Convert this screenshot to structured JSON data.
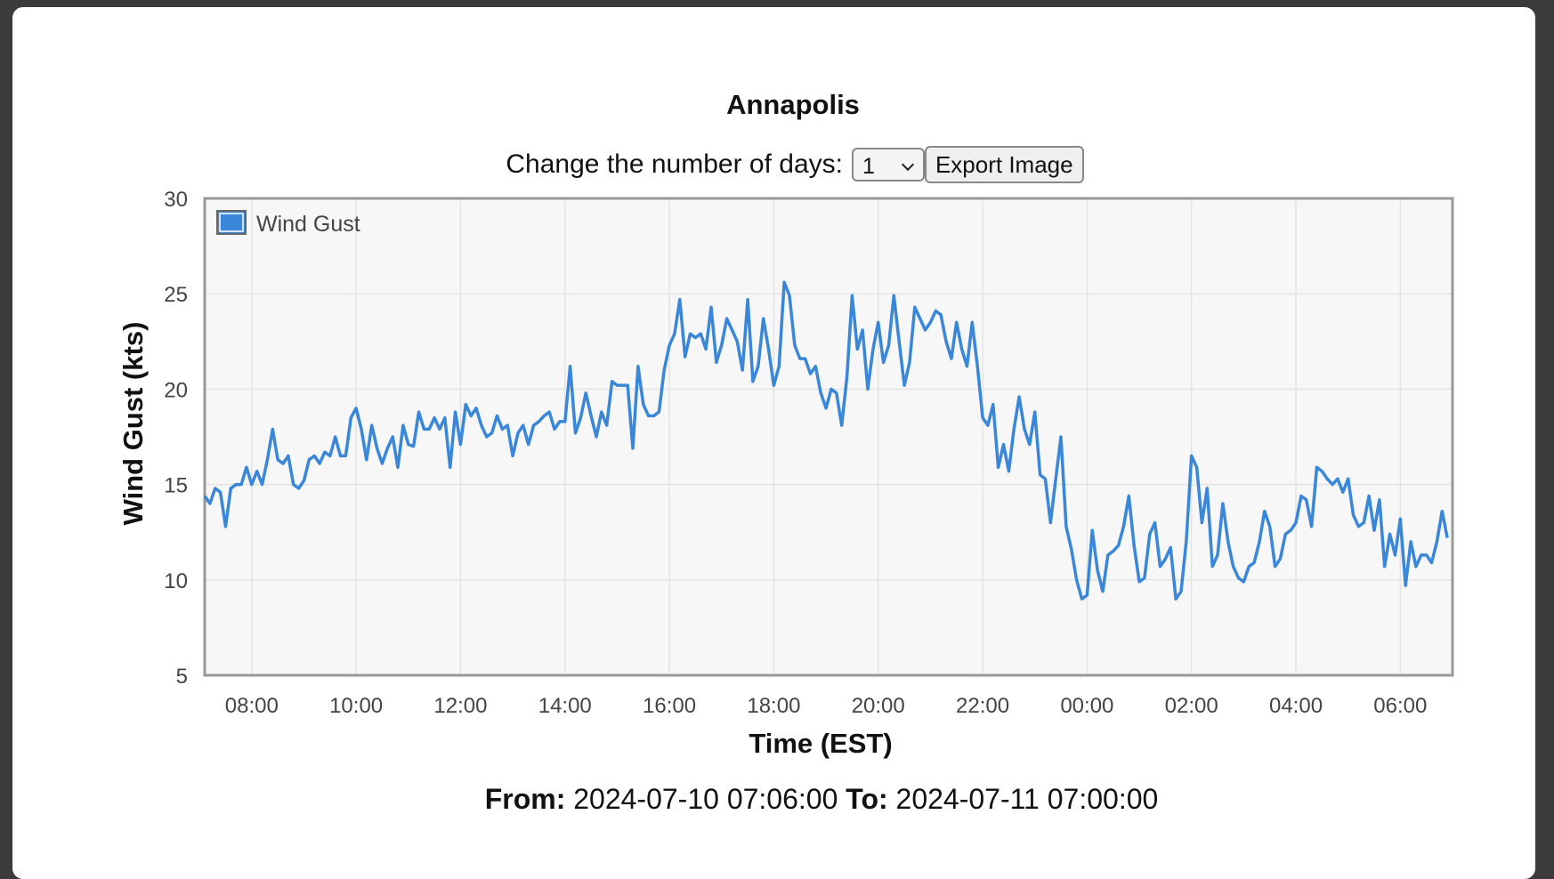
{
  "chart_data": {
    "type": "line",
    "title": "Annapolis",
    "xlabel": "Time (EST)",
    "ylabel": "Wind Gust (kts)",
    "x": [
      "07:06",
      "07:12",
      "07:18",
      "07:24",
      "07:30",
      "07:36",
      "07:42",
      "07:48",
      "07:54",
      "08:00",
      "08:06",
      "08:12",
      "08:18",
      "08:24",
      "08:30",
      "08:36",
      "08:42",
      "08:48",
      "08:54",
      "09:00",
      "09:06",
      "09:12",
      "09:18",
      "09:24",
      "09:30",
      "09:36",
      "09:42",
      "09:48",
      "09:54",
      "10:00",
      "10:06",
      "10:12",
      "10:18",
      "10:24",
      "10:30",
      "10:36",
      "10:42",
      "10:48",
      "10:54",
      "11:00",
      "11:06",
      "11:12",
      "11:18",
      "11:24",
      "11:30",
      "11:36",
      "11:42",
      "11:48",
      "11:54",
      "12:00",
      "12:06",
      "12:12",
      "12:18",
      "12:24",
      "12:30",
      "12:36",
      "12:42",
      "12:48",
      "12:54",
      "13:00",
      "13:06",
      "13:12",
      "13:18",
      "13:24",
      "13:30",
      "13:36",
      "13:42",
      "13:48",
      "13:54",
      "14:00",
      "14:06",
      "14:12",
      "14:18",
      "14:24",
      "14:30",
      "14:36",
      "14:42",
      "14:48",
      "14:54",
      "15:00",
      "15:06",
      "15:12",
      "15:18",
      "15:24",
      "15:30",
      "15:36",
      "15:42",
      "15:48",
      "15:54",
      "16:00",
      "16:06",
      "16:12",
      "16:18",
      "16:24",
      "16:30",
      "16:36",
      "16:42",
      "16:48",
      "16:54",
      "17:00",
      "17:06",
      "17:12",
      "17:18",
      "17:24",
      "17:30",
      "17:36",
      "17:42",
      "17:48",
      "17:54",
      "18:00",
      "18:06",
      "18:12",
      "18:18",
      "18:24",
      "18:30",
      "18:36",
      "18:42",
      "18:48",
      "18:54",
      "19:00",
      "19:06",
      "19:12",
      "19:18",
      "19:24",
      "19:30",
      "19:36",
      "19:42",
      "19:48",
      "19:54",
      "20:00",
      "20:06",
      "20:12",
      "20:18",
      "20:24",
      "20:30",
      "20:36",
      "20:42",
      "20:48",
      "20:54",
      "21:00",
      "21:06",
      "21:12",
      "21:18",
      "21:24",
      "21:30",
      "21:36",
      "21:42",
      "21:48",
      "21:54",
      "22:00",
      "22:06",
      "22:12",
      "22:18",
      "22:24",
      "22:30",
      "22:36",
      "22:42",
      "22:48",
      "22:54",
      "23:00",
      "23:06",
      "23:12",
      "23:18",
      "23:24",
      "23:30",
      "23:36",
      "23:42",
      "23:48",
      "23:54",
      "00:00",
      "00:06",
      "00:12",
      "00:18",
      "00:24",
      "00:30",
      "00:36",
      "00:42",
      "00:48",
      "00:54",
      "01:00",
      "01:06",
      "01:12",
      "01:18",
      "01:24",
      "01:30",
      "01:36",
      "01:42",
      "01:48",
      "01:54",
      "02:00",
      "02:06",
      "02:12",
      "02:18",
      "02:24",
      "02:30",
      "02:36",
      "02:42",
      "02:48",
      "02:54",
      "03:00",
      "03:06",
      "03:12",
      "03:18",
      "03:24",
      "03:30",
      "03:36",
      "03:42",
      "03:48",
      "03:54",
      "04:00",
      "04:06",
      "04:12",
      "04:18",
      "04:24",
      "04:30",
      "04:36",
      "04:42",
      "04:48",
      "04:54",
      "05:00",
      "05:06",
      "05:12",
      "05:18",
      "05:24",
      "05:30",
      "05:36",
      "05:42",
      "05:48",
      "05:54",
      "06:00",
      "06:06",
      "06:12",
      "06:18",
      "06:24",
      "06:30",
      "06:36",
      "06:42",
      "06:48",
      "06:54"
    ],
    "series": [
      {
        "name": "Wind Gust",
        "color": "#3a86d9",
        "values": [
          14.4,
          14.0,
          14.8,
          14.6,
          12.8,
          14.8,
          15.0,
          15.0,
          15.9,
          15.0,
          15.7,
          15.0,
          16.3,
          17.9,
          16.3,
          16.1,
          16.5,
          15.0,
          14.8,
          15.2,
          16.3,
          16.5,
          16.1,
          16.7,
          16.5,
          17.5,
          16.5,
          16.5,
          18.5,
          19.0,
          17.9,
          16.3,
          18.1,
          16.9,
          16.1,
          16.9,
          17.5,
          15.9,
          18.1,
          17.1,
          17.0,
          18.8,
          17.9,
          17.9,
          18.5,
          17.9,
          18.5,
          15.9,
          18.8,
          17.1,
          19.2,
          18.6,
          19.0,
          18.1,
          17.5,
          17.7,
          18.6,
          17.9,
          18.1,
          16.5,
          17.7,
          18.1,
          17.1,
          18.1,
          18.3,
          18.6,
          18.8,
          17.9,
          18.3,
          18.3,
          21.2,
          17.7,
          18.5,
          19.8,
          18.6,
          17.5,
          18.8,
          18.1,
          20.4,
          20.2,
          20.2,
          20.2,
          16.9,
          21.2,
          19.2,
          18.6,
          18.6,
          18.8,
          21.0,
          22.3,
          22.9,
          24.7,
          21.7,
          22.9,
          22.7,
          22.9,
          22.1,
          24.3,
          21.4,
          22.3,
          23.7,
          23.1,
          22.5,
          21.0,
          24.7,
          20.4,
          21.2,
          23.7,
          22.1,
          20.2,
          21.2,
          25.6,
          24.9,
          22.3,
          21.6,
          21.6,
          20.8,
          21.2,
          19.8,
          19.0,
          20.0,
          19.8,
          18.1,
          20.6,
          24.9,
          22.1,
          23.1,
          20.0,
          22.1,
          23.5,
          21.4,
          22.3,
          24.9,
          22.5,
          20.2,
          21.4,
          24.3,
          23.7,
          23.1,
          23.5,
          24.1,
          23.9,
          22.5,
          21.6,
          23.5,
          22.1,
          21.2,
          23.5,
          21.2,
          18.5,
          18.1,
          19.2,
          15.9,
          17.1,
          15.7,
          17.9,
          19.6,
          17.9,
          17.1,
          18.8,
          15.5,
          15.3,
          13.0,
          15.3,
          17.5,
          12.8,
          11.6,
          10.0,
          9.0,
          9.2,
          12.6,
          10.5,
          9.4,
          11.3,
          11.5,
          11.8,
          12.8,
          14.4,
          11.8,
          9.9,
          10.1,
          12.4,
          13.0,
          10.7,
          11.1,
          11.7,
          9.0,
          9.4,
          12.0,
          16.5,
          15.9,
          13.0,
          14.8,
          10.7,
          11.3,
          14.0,
          12.0,
          10.7,
          10.1,
          9.9,
          10.7,
          10.9,
          12.0,
          13.6,
          12.8,
          10.7,
          11.1,
          12.4,
          12.6,
          13.0,
          14.4,
          14.2,
          12.8,
          15.9,
          15.7,
          15.3,
          15.0,
          15.3,
          14.6,
          15.3,
          13.4,
          12.8,
          13.0,
          14.4,
          12.6,
          14.2,
          10.7,
          12.4,
          11.3,
          13.2,
          9.7,
          12.0,
          10.7,
          11.3,
          11.3,
          10.9,
          12.0,
          13.6,
          12.2
        ]
      }
    ],
    "xlim": [
      "07:06",
      "07:00"
    ],
    "xticks": [
      "08:00",
      "10:00",
      "12:00",
      "14:00",
      "16:00",
      "18:00",
      "20:00",
      "22:00",
      "00:00",
      "02:00",
      "04:00",
      "06:00"
    ],
    "ylim": [
      5,
      30
    ],
    "yticks": [
      5,
      10,
      15,
      20,
      25,
      30
    ],
    "grid": true,
    "legend": "upper left"
  },
  "controls": {
    "label": "Change the number of days:",
    "days": "1",
    "button": "Export Image"
  },
  "footer": {
    "from_label": "From:",
    "from": "2024-07-10 07:06:00",
    "to_label": "To:",
    "to": "2024-07-11 07:00:00"
  }
}
